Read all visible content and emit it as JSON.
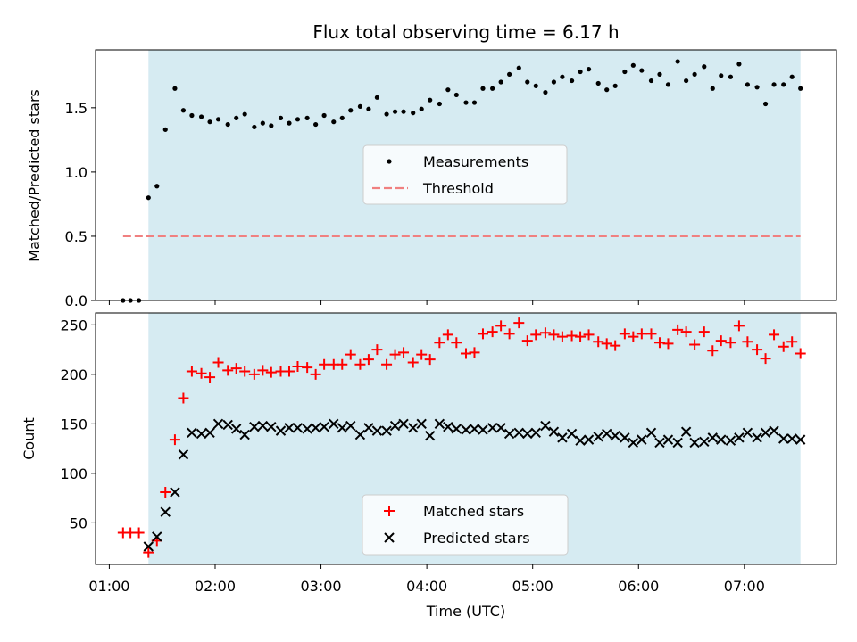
{
  "chart_data": [
    {
      "type": "scatter",
      "title": "Flux total observing time = 6.17 h",
      "xlabel": "",
      "ylabel": "Matched/Predicted stars",
      "xlim": [
        0.87,
        7.87
      ],
      "ylim": [
        0,
        1.95
      ],
      "xticks": [
        1,
        2,
        3,
        4,
        5,
        6,
        7
      ],
      "yticks": [
        0.0,
        0.5,
        1.0,
        1.5
      ],
      "ytick_labels": [
        "0.0",
        "0.5",
        "1.0",
        "1.5"
      ],
      "shaded_region": [
        1.37,
        7.53
      ],
      "threshold": {
        "name": "Threshold",
        "value": 0.5,
        "x_range": [
          1.13,
          7.53
        ],
        "color": "#f08080"
      },
      "legend": [
        "Measurements",
        "Threshold"
      ],
      "legend_position": "center",
      "series": [
        {
          "name": "Measurements",
          "color": "#000000",
          "x": [
            1.13,
            1.2,
            1.28,
            1.37,
            1.45,
            1.53,
            1.62,
            1.7,
            1.78,
            1.87,
            1.95,
            2.03,
            2.12,
            2.2,
            2.28,
            2.37,
            2.45,
            2.53,
            2.62,
            2.7,
            2.78,
            2.87,
            2.95,
            3.03,
            3.12,
            3.2,
            3.28,
            3.37,
            3.45,
            3.53,
            3.62,
            3.7,
            3.78,
            3.87,
            3.95,
            4.03,
            4.12,
            4.2,
            4.28,
            4.37,
            4.45,
            4.53,
            4.62,
            4.7,
            4.78,
            4.87,
            4.95,
            5.03,
            5.12,
            5.2,
            5.28,
            5.37,
            5.45,
            5.53,
            5.62,
            5.7,
            5.78,
            5.87,
            5.95,
            6.03,
            6.12,
            6.2,
            6.28,
            6.37,
            6.45,
            6.53,
            6.62,
            6.7,
            6.78,
            6.87,
            6.95,
            7.03,
            7.12,
            7.2,
            7.28,
            7.37,
            7.45,
            7.53
          ],
          "y": [
            0,
            0,
            0,
            0.8,
            0.89,
            1.33,
            1.65,
            1.48,
            1.44,
            1.43,
            1.39,
            1.41,
            1.37,
            1.42,
            1.45,
            1.35,
            1.38,
            1.36,
            1.42,
            1.38,
            1.41,
            1.42,
            1.37,
            1.44,
            1.39,
            1.42,
            1.48,
            1.51,
            1.49,
            1.58,
            1.45,
            1.47,
            1.47,
            1.46,
            1.49,
            1.56,
            1.53,
            1.64,
            1.6,
            1.54,
            1.54,
            1.65,
            1.65,
            1.7,
            1.76,
            1.81,
            1.7,
            1.67,
            1.62,
            1.7,
            1.74,
            1.71,
            1.78,
            1.8,
            1.69,
            1.64,
            1.67,
            1.78,
            1.83,
            1.79,
            1.71,
            1.76,
            1.68,
            1.86,
            1.71,
            1.76,
            1.82,
            1.65,
            1.75,
            1.74,
            1.84,
            1.68,
            1.66,
            1.53,
            1.68,
            1.68,
            1.74,
            1.65
          ]
        }
      ]
    },
    {
      "type": "scatter",
      "title": "",
      "xlabel": "Time (UTC)",
      "ylabel": "Count",
      "xlim": [
        0.87,
        7.87
      ],
      "ylim": [
        8,
        262
      ],
      "xticks": [
        1,
        2,
        3,
        4,
        5,
        6,
        7
      ],
      "xtick_labels": [
        "01:00",
        "02:00",
        "03:00",
        "04:00",
        "05:00",
        "06:00",
        "07:00"
      ],
      "yticks": [
        50,
        100,
        150,
        200,
        250
      ],
      "ytick_labels": [
        "50",
        "100",
        "150",
        "200",
        "250"
      ],
      "shaded_region": [
        1.37,
        7.53
      ],
      "legend": [
        "Matched stars",
        "Predicted stars"
      ],
      "legend_position": "lower center",
      "series": [
        {
          "name": "Matched stars",
          "marker": "+",
          "color": "#ff0000",
          "x": [
            1.13,
            1.2,
            1.28,
            1.37,
            1.45,
            1.53,
            1.62,
            1.7,
            1.78,
            1.87,
            1.95,
            2.03,
            2.12,
            2.2,
            2.28,
            2.37,
            2.45,
            2.53,
            2.62,
            2.7,
            2.78,
            2.87,
            2.95,
            3.03,
            3.12,
            3.2,
            3.28,
            3.37,
            3.45,
            3.53,
            3.62,
            3.7,
            3.78,
            3.87,
            3.95,
            4.03,
            4.12,
            4.2,
            4.28,
            4.37,
            4.45,
            4.53,
            4.62,
            4.7,
            4.78,
            4.87,
            4.95,
            5.03,
            5.12,
            5.2,
            5.28,
            5.37,
            5.45,
            5.53,
            5.62,
            5.7,
            5.78,
            5.87,
            5.95,
            6.03,
            6.12,
            6.2,
            6.28,
            6.37,
            6.45,
            6.53,
            6.62,
            6.7,
            6.78,
            6.87,
            6.95,
            7.03,
            7.12,
            7.2,
            7.28,
            7.37,
            7.45,
            7.53
          ],
          "y": [
            40,
            40,
            40,
            20,
            32,
            81,
            134,
            176,
            203,
            201,
            197,
            212,
            204,
            206,
            203,
            200,
            204,
            202,
            203,
            203,
            208,
            207,
            200,
            210,
            210,
            210,
            220,
            210,
            215,
            225,
            210,
            220,
            222,
            212,
            220,
            215,
            232,
            240,
            232,
            221,
            222,
            241,
            243,
            249,
            241,
            252,
            234,
            240,
            242,
            240,
            238,
            239,
            238,
            240,
            233,
            231,
            229,
            241,
            238,
            241,
            241,
            232,
            231,
            245,
            243,
            230,
            243,
            224,
            234,
            232,
            249,
            233,
            225,
            216,
            240,
            228,
            233,
            221
          ]
        },
        {
          "name": "Predicted stars",
          "marker": "x",
          "color": "#000000",
          "x": [
            1.37,
            1.45,
            1.53,
            1.62,
            1.7,
            1.78,
            1.87,
            1.95,
            2.03,
            2.12,
            2.2,
            2.28,
            2.37,
            2.45,
            2.53,
            2.62,
            2.7,
            2.78,
            2.87,
            2.95,
            3.03,
            3.12,
            3.2,
            3.28,
            3.37,
            3.45,
            3.53,
            3.62,
            3.7,
            3.78,
            3.87,
            3.95,
            4.03,
            4.12,
            4.2,
            4.28,
            4.37,
            4.45,
            4.53,
            4.62,
            4.7,
            4.78,
            4.87,
            4.95,
            5.03,
            5.12,
            5.2,
            5.28,
            5.37,
            5.45,
            5.53,
            5.62,
            5.7,
            5.78,
            5.87,
            5.95,
            6.03,
            6.12,
            6.2,
            6.28,
            6.37,
            6.45,
            6.53,
            6.62,
            6.7,
            6.78,
            6.87,
            6.95,
            7.03,
            7.12,
            7.2,
            7.28,
            7.37,
            7.45,
            7.53
          ],
          "y": [
            26,
            36,
            61,
            81,
            119,
            141,
            140,
            141,
            150,
            149,
            145,
            139,
            147,
            148,
            147,
            143,
            146,
            146,
            145,
            146,
            147,
            150,
            146,
            148,
            139,
            146,
            143,
            143,
            148,
            150,
            146,
            150,
            138,
            150,
            147,
            145,
            144,
            145,
            144,
            146,
            146,
            140,
            141,
            140,
            141,
            148,
            142,
            136,
            140,
            133,
            134,
            137,
            140,
            138,
            136,
            131,
            134,
            141,
            131,
            134,
            131,
            142,
            131,
            132,
            136,
            134,
            133,
            136,
            141,
            136,
            141,
            143,
            135,
            135,
            134
          ]
        }
      ]
    }
  ]
}
